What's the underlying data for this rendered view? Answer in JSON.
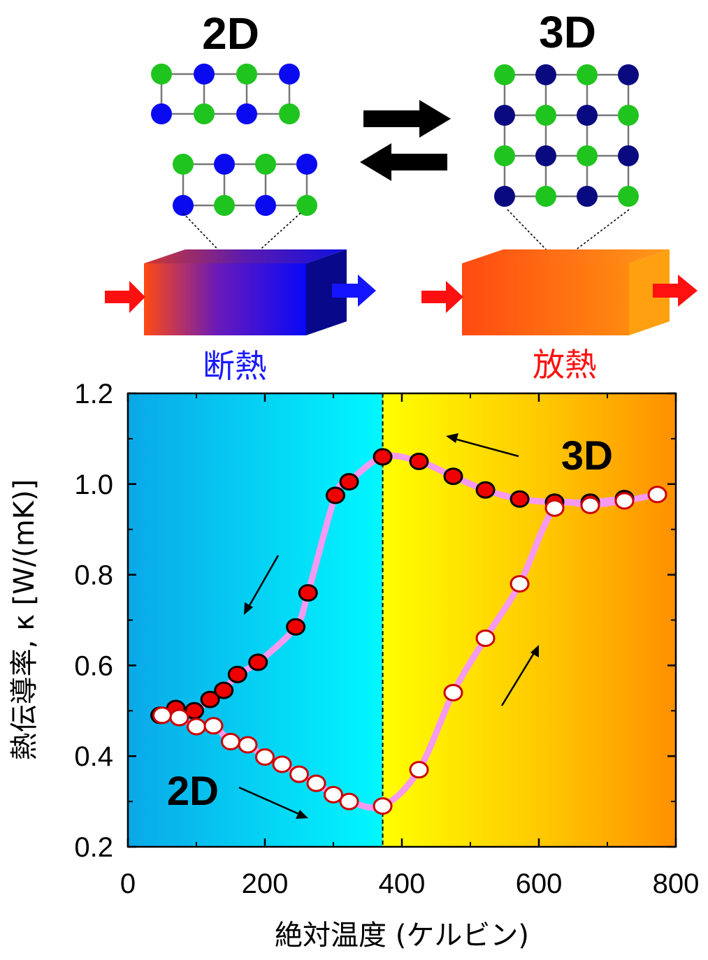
{
  "top": {
    "label_2d": "2D",
    "label_3d": "3D",
    "caption_2d": "断熱",
    "caption_3d": "放熱"
  },
  "colors": {
    "lattice_green": "#1fc41f",
    "lattice_blue_2d": "#0a0af0",
    "lattice_blue_3d": "#0a0a80",
    "heat_arrow": "#ff1010",
    "cool_arrow": "#1414ff",
    "curve": "#f59af0",
    "marker_fill_cooling": "#ee0000",
    "marker_fill_heating": "#ffffff",
    "marker_edge_heating": "#cc0000"
  },
  "chart_data": {
    "type": "scatter",
    "xlabel": "絶対温度 (ケルビン)",
    "ylabel": "熱伝導率, κ [W/(mK)]",
    "xlim": [
      0,
      800
    ],
    "ylim": [
      0.2,
      1.2
    ],
    "xticks": [
      "0",
      "200",
      "400",
      "600",
      "800"
    ],
    "yticks": [
      "0.2",
      "0.4",
      "0.6",
      "0.8",
      "1.0",
      "1.2"
    ],
    "transition_x": 372,
    "region_labels": {
      "low": "2D",
      "high": "3D"
    },
    "series": [
      {
        "marker": "filled",
        "x": [
          47,
          70,
          97,
          120,
          140,
          160,
          190,
          245,
          263,
          303,
          323,
          372,
          425,
          475,
          522,
          572,
          623,
          675,
          725
        ],
        "y": [
          0.49,
          0.505,
          0.5,
          0.525,
          0.545,
          0.58,
          0.607,
          0.685,
          0.76,
          0.975,
          1.005,
          1.06,
          1.05,
          1.017,
          0.987,
          0.967,
          0.96,
          0.96,
          0.968
        ]
      },
      {
        "marker": "open",
        "x": [
          50,
          75,
          100,
          125,
          150,
          175,
          200,
          225,
          250,
          275,
          300,
          323,
          372,
          425,
          475,
          522,
          572,
          623,
          675,
          725,
          773
        ],
        "y": [
          0.49,
          0.485,
          0.465,
          0.467,
          0.432,
          0.425,
          0.398,
          0.382,
          0.36,
          0.34,
          0.315,
          0.3,
          0.29,
          0.37,
          0.54,
          0.66,
          0.78,
          0.947,
          0.953,
          0.963,
          0.977
        ]
      }
    ]
  }
}
